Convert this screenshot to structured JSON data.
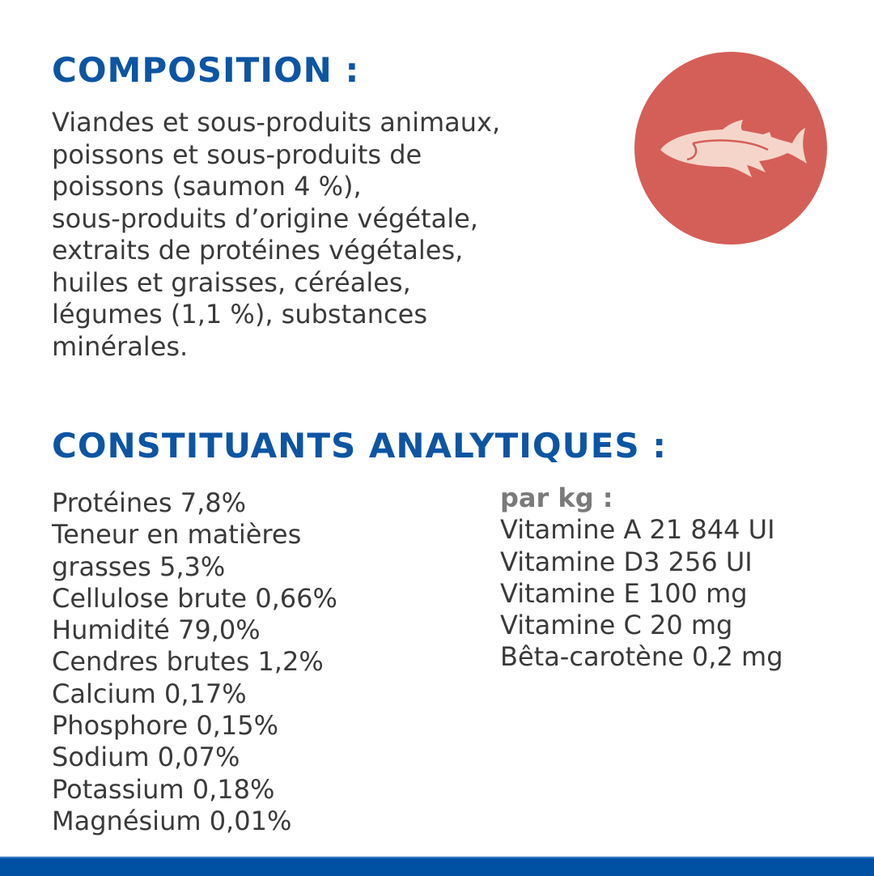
{
  "composition": {
    "title": "COMPOSITION :",
    "lines": [
      "Viandes et sous-produits animaux,",
      "poissons et sous-produits de",
      "poissons (saumon 4 %),",
      "sous-produits d’origine végétale,",
      "extraits de protéines végétales,",
      "huiles et graisses, céréales,",
      "légumes (1,1 %), substances",
      "minérales."
    ]
  },
  "icon": {
    "name": "fish-icon",
    "circle_color": "#d45f58",
    "fish_color": "#f5d5ca"
  },
  "analytical": {
    "title": "CONSTITUANTS ANALYTIQUES :",
    "left": [
      "Protéines 7,8%",
      "Teneur en matières",
      "grasses 5,3%",
      "Cellulose brute 0,66%",
      "Humidité 79,0%",
      "Cendres brutes 1,2%",
      "Calcium 0,17%",
      "Phosphore 0,15%",
      "Sodium 0,07%",
      "Potassium 0,18%",
      "Magnésium 0,01%"
    ],
    "right_header": "par kg :",
    "right": [
      "Vitamine A 21 844 UI",
      "Vitamine D3 256 UI",
      "Vitamine E 100 mg",
      "Vitamine C 20 mg",
      "Bêta-carotène 0,2 mg"
    ]
  },
  "colors": {
    "title": "#0d55a3",
    "text": "#3a3a3a",
    "footer_bar": "#0051a3"
  }
}
